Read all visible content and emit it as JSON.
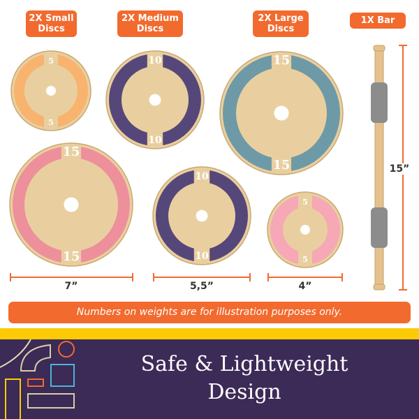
{
  "labels": {
    "small": "2X Small Discs",
    "medium": "2X Medium Discs",
    "large": "2X Large Discs",
    "bar": "1X Bar"
  },
  "discs": [
    {
      "number": "5",
      "color": "#f8b36e"
    },
    {
      "number": "10",
      "color": "#56477a"
    },
    {
      "number": "15",
      "color": "#6d9aa6"
    },
    {
      "number": "15",
      "color": "#ee8f9c"
    },
    {
      "number": "10",
      "color": "#56477a"
    },
    {
      "number": "5",
      "color": "#f6a8b6"
    }
  ],
  "dimensions": {
    "large": "7”",
    "medium": "5,5”",
    "small": "4”",
    "bar": "15”"
  },
  "banner": "Numbers on weights are for illustration purposes only.",
  "footer": {
    "title": "Safe & Lightweight Design"
  },
  "colors": {
    "accent": "#f26a2e",
    "yellow": "#fccb06",
    "purple": "#3c2a57",
    "wood": "#e9cf9f"
  }
}
